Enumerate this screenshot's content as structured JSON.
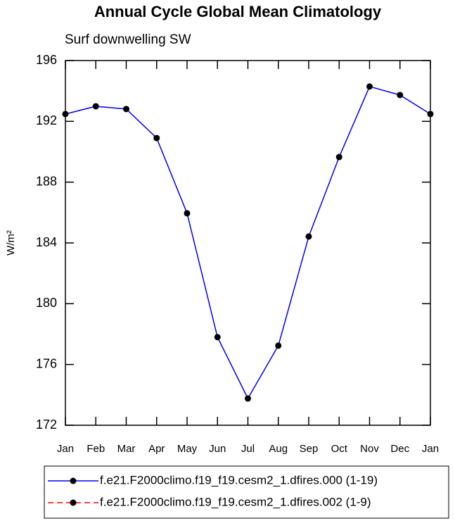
{
  "chart_data": {
    "type": "line",
    "title": "Annual Cycle Global Mean Climatology",
    "subtitle": "Surf downwelling SW",
    "ylabel": "W/m²",
    "categories": [
      "Jan",
      "Feb",
      "Mar",
      "Apr",
      "May",
      "Jun",
      "Jul",
      "Aug",
      "Sep",
      "Oct",
      "Nov",
      "Dec",
      "Jan"
    ],
    "series": [
      {
        "name": "f.e21.F2000climo.f19_f19.cesm2_1.dfires.000 (1-19)",
        "color": "#0000ff",
        "dash": false,
        "values": [
          192.48,
          192.99,
          192.81,
          190.9,
          185.95,
          177.8,
          173.76,
          177.24,
          184.42,
          189.65,
          194.29,
          193.73,
          192.48
        ]
      },
      {
        "name": "f.e21.F2000climo.f19_f19.cesm2_1.dfires.002 (1-9)",
        "color": "#ff0000",
        "dash": true,
        "values": [
          null,
          null,
          null,
          null,
          null,
          null,
          null,
          null,
          null,
          null,
          null,
          null,
          null
        ]
      }
    ],
    "ylim": [
      172,
      196
    ],
    "yticks": [
      172,
      176,
      180,
      184,
      188,
      192,
      196
    ],
    "grid": false
  }
}
